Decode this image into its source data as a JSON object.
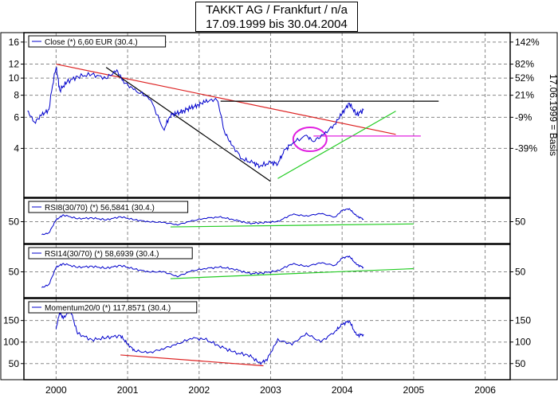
{
  "title": {
    "line1": "TAKKT AG / Frankfurt / n/a",
    "line2": "17.09.1999 bis 30.04.2004"
  },
  "colors": {
    "price": "#0000cc",
    "trend_red": "#dd2222",
    "trend_black": "#000000",
    "trend_green": "#22cc22",
    "marker_magenta": "#e020e0"
  },
  "chart_data": [
    {
      "type": "line",
      "panel": "price",
      "legend": "Close (*) 6,60 EUR (30.4.)",
      "y_scale": "log",
      "ylim": [
        2.2,
        17
      ],
      "yticks_left": [
        "16",
        "12",
        "10",
        "8",
        "6",
        "4"
      ],
      "yticks_right": [
        "142%",
        "82%",
        "52%",
        "21%",
        "-9%",
        "-39%"
      ],
      "right_axis_label": "17.06.1999 = Basis",
      "x": [
        1999.6,
        1999.7,
        1999.8,
        1999.9,
        2000.0,
        2000.05,
        2000.15,
        2000.3,
        2000.5,
        2000.7,
        2000.85,
        2000.95,
        2001.1,
        2001.3,
        2001.5,
        2001.6,
        2001.7,
        2001.8,
        2001.9,
        2002.0,
        2002.1,
        2002.25,
        2002.35,
        2002.45,
        2002.6,
        2002.75,
        2002.85,
        2003.0,
        2003.1,
        2003.2,
        2003.3,
        2003.5,
        2003.6,
        2003.75,
        2003.9,
        2004.0,
        2004.1,
        2004.2,
        2004.3
      ],
      "values": [
        6.5,
        5.6,
        6.2,
        6.6,
        11.5,
        8.5,
        9.5,
        10.2,
        10.5,
        10.0,
        11.0,
        9.5,
        8.5,
        7.8,
        5.0,
        6.2,
        6.3,
        6.6,
        6.8,
        7.1,
        7.4,
        7.6,
        5.0,
        4.2,
        3.5,
        3.3,
        3.2,
        3.3,
        3.3,
        3.9,
        4.3,
        4.7,
        4.4,
        4.8,
        5.5,
        6.3,
        7.2,
        6.2,
        6.6
      ],
      "trendlines": [
        {
          "color": "red",
          "x": [
            2000.0,
            2004.75
          ],
          "y": [
            12.0,
            4.8
          ]
        },
        {
          "color": "black",
          "x": [
            2000.7,
            2003.0
          ],
          "y": [
            11.5,
            2.6
          ]
        },
        {
          "color": "black",
          "x": [
            2002.3,
            2005.35
          ],
          "y": [
            7.4,
            7.4
          ]
        },
        {
          "color": "green",
          "x": [
            2003.1,
            2004.75
          ],
          "y": [
            2.7,
            6.5
          ]
        },
        {
          "color": "magenta",
          "x": [
            2003.6,
            2005.1
          ],
          "y": [
            4.7,
            4.7
          ]
        }
      ],
      "marker": {
        "shape": "ellipse",
        "x": 2003.55,
        "y": 4.5
      }
    },
    {
      "type": "line",
      "panel": "rsi8",
      "legend": "RSI8(30/70) (*) 56,5841 (30.4.)",
      "yticks_left": [
        "50"
      ],
      "yticks_right": [
        "50"
      ],
      "ylim": [
        0,
        100
      ],
      "x": [
        1999.8,
        1999.9,
        2000.0,
        2000.1,
        2000.3,
        2000.5,
        2000.7,
        2000.9,
        2001.1,
        2001.3,
        2001.5,
        2001.7,
        2001.9,
        2002.1,
        2002.3,
        2002.5,
        2002.7,
        2002.9,
        2003.1,
        2003.3,
        2003.5,
        2003.7,
        2003.9,
        2004.0,
        2004.1,
        2004.2,
        2004.3
      ],
      "values": [
        15,
        20,
        55,
        68,
        58,
        60,
        55,
        63,
        55,
        50,
        48,
        42,
        52,
        60,
        62,
        55,
        45,
        48,
        50,
        70,
        65,
        72,
        62,
        80,
        85,
        65,
        57
      ],
      "trendlines": [
        {
          "color": "green",
          "x": [
            2001.6,
            2005.0
          ],
          "y": [
            36,
            44
          ]
        }
      ]
    },
    {
      "type": "line",
      "panel": "rsi14",
      "legend": "RSI14(30/70) (*) 58,6939 (30.4.)",
      "yticks_left": [
        "50"
      ],
      "yticks_right": [
        "50"
      ],
      "ylim": [
        0,
        100
      ],
      "x": [
        1999.8,
        1999.9,
        2000.0,
        2000.1,
        2000.3,
        2000.5,
        2000.7,
        2000.9,
        2001.1,
        2001.3,
        2001.5,
        2001.7,
        2001.9,
        2002.1,
        2002.3,
        2002.5,
        2002.7,
        2002.9,
        2003.1,
        2003.3,
        2003.5,
        2003.7,
        2003.9,
        2004.0,
        2004.1,
        2004.2,
        2004.3
      ],
      "values": [
        15,
        22,
        60,
        68,
        60,
        62,
        58,
        64,
        56,
        50,
        50,
        40,
        52,
        58,
        60,
        56,
        46,
        48,
        52,
        68,
        62,
        70,
        64,
        80,
        85,
        66,
        60
      ],
      "trendlines": [
        {
          "color": "green",
          "x": [
            2001.6,
            2005.0
          ],
          "y": [
            35,
            57
          ]
        }
      ]
    },
    {
      "type": "line",
      "panel": "momentum",
      "legend": "Momentum20/0 (*) 117,8571 (30.4.)",
      "yticks_left": [
        "150",
        "100",
        "50"
      ],
      "yticks_right": [
        "150",
        "100",
        "50"
      ],
      "ylim": [
        20,
        190
      ],
      "x": [
        2000.0,
        2000.05,
        2000.1,
        2000.2,
        2000.3,
        2000.5,
        2000.7,
        2000.9,
        2001.0,
        2001.1,
        2001.3,
        2001.5,
        2001.7,
        2001.9,
        2002.1,
        2002.3,
        2002.5,
        2002.7,
        2002.85,
        2002.95,
        2003.1,
        2003.3,
        2003.5,
        2003.7,
        2003.9,
        2004.0,
        2004.1,
        2004.2,
        2004.3
      ],
      "values": [
        130,
        170,
        155,
        175,
        120,
        105,
        110,
        115,
        95,
        80,
        75,
        85,
        95,
        110,
        105,
        90,
        75,
        70,
        50,
        60,
        105,
        95,
        120,
        100,
        125,
        140,
        150,
        115,
        118
      ],
      "trendlines": [
        {
          "color": "red",
          "x": [
            2000.9,
            2002.9
          ],
          "y": [
            70,
            45
          ]
        }
      ]
    }
  ],
  "x_axis": {
    "ticks": [
      "2000",
      "2001",
      "2002",
      "2003",
      "2004",
      "2005",
      "2006"
    ],
    "range": [
      1999.55,
      2006.35
    ]
  }
}
